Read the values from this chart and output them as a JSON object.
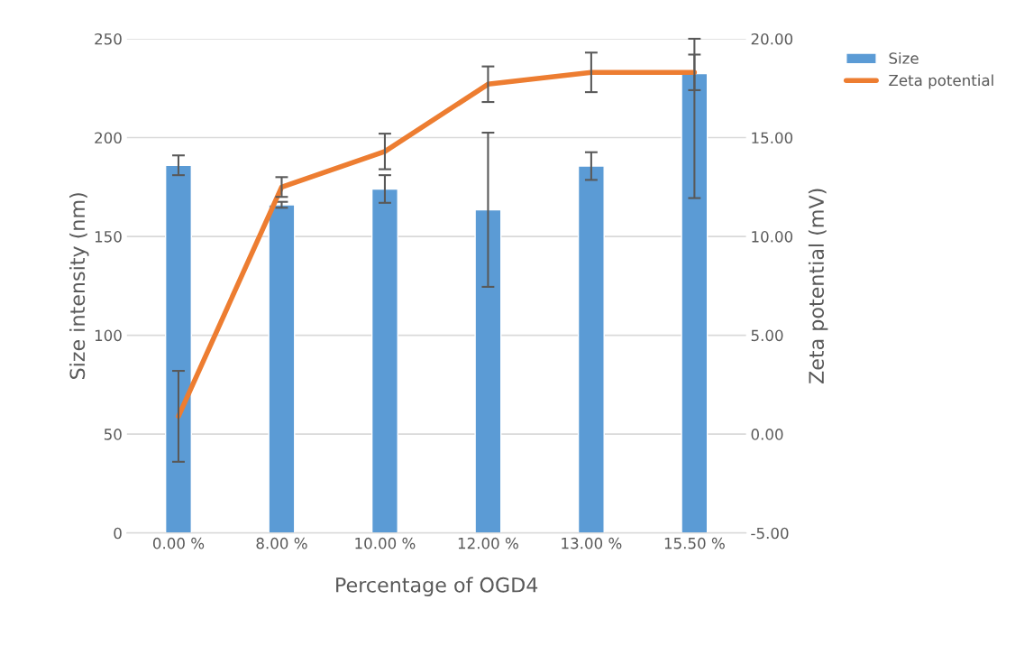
{
  "chart_data": {
    "type": "bar",
    "xlabel": "Percentage of OGD4",
    "ylabel": "Size intensity (nm)",
    "y2label": "Zeta potential (mV)",
    "categories": [
      "0.00 %",
      "8.00 %",
      "10.00 %",
      "12.00 %",
      "13.00 %",
      "15.50 %"
    ],
    "series": [
      {
        "name": "Size",
        "type": "bar",
        "color": "#5b9bd5",
        "values": [
          186,
          166,
          174,
          163.5,
          185.6,
          232.4
        ],
        "errors": [
          5,
          1.5,
          7,
          39,
          7,
          [
            169.4,
            250
          ]
        ]
      },
      {
        "name": "Zeta potential",
        "type": "line",
        "axis": "y2",
        "color": "#ed7d31",
        "values": [
          0.9,
          12.5,
          14.3,
          17.7,
          18.3,
          18.3
        ],
        "errors": [
          2.3,
          0.5,
          0.9,
          0.9,
          1.0,
          0.9
        ]
      }
    ],
    "ylim": [
      0,
      250
    ],
    "yticks": [
      0,
      50,
      100,
      150,
      200,
      250
    ],
    "y2lim": [
      -5,
      20
    ],
    "y2ticks": [
      {
        "value": -5,
        "label": "-5.00"
      },
      {
        "value": 0,
        "label": "0.00"
      },
      {
        "value": 5,
        "label": "5.00"
      },
      {
        "value": 10,
        "label": "10.00"
      },
      {
        "value": 15,
        "label": "15.00"
      },
      {
        "value": 20,
        "label": "20.00"
      }
    ],
    "grid": "y",
    "legend": "top right",
    "marker": "none",
    "line_style": "solid"
  }
}
